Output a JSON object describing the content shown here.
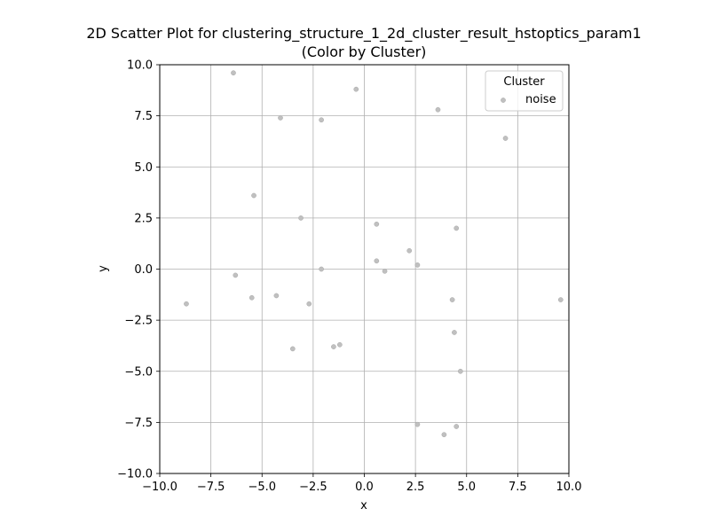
{
  "chart_data": {
    "type": "scatter",
    "title": "2D Scatter Plot for clustering_structure_1_2d_cluster_result_hstoptics_param1",
    "subtitle": "(Color by Cluster)",
    "xlabel": "x",
    "ylabel": "y",
    "xlim": [
      -10,
      10
    ],
    "ylim": [
      -10,
      10
    ],
    "xticks": [
      -10.0,
      -7.5,
      -5.0,
      -2.5,
      0.0,
      2.5,
      5.0,
      7.5,
      10.0
    ],
    "yticks": [
      -10.0,
      -7.5,
      -5.0,
      -2.5,
      0.0,
      2.5,
      5.0,
      7.5,
      10.0
    ],
    "xtick_labels": [
      "−10.0",
      "−7.5",
      "−5.0",
      "−2.5",
      "0.0",
      "2.5",
      "5.0",
      "7.5",
      "10.0"
    ],
    "ytick_labels": [
      "−10.0",
      "−7.5",
      "−5.0",
      "−2.5",
      "0.0",
      "2.5",
      "5.0",
      "7.5",
      "10.0"
    ],
    "grid": true,
    "legend": {
      "title": "Cluster",
      "placement": "top-right",
      "entries": [
        "noise"
      ]
    },
    "series": [
      {
        "name": "noise",
        "color": "#c0c0c0",
        "points": [
          [
            -6.4,
            9.6
          ],
          [
            -0.4,
            8.8
          ],
          [
            3.6,
            7.8
          ],
          [
            -4.1,
            7.4
          ],
          [
            -2.1,
            7.3
          ],
          [
            6.9,
            6.4
          ],
          [
            -5.4,
            3.6
          ],
          [
            -3.1,
            2.5
          ],
          [
            0.6,
            2.2
          ],
          [
            4.5,
            2.0
          ],
          [
            2.2,
            0.9
          ],
          [
            0.6,
            0.4
          ],
          [
            2.6,
            0.2
          ],
          [
            -2.1,
            0.0
          ],
          [
            1.0,
            -0.1
          ],
          [
            -6.3,
            -0.3
          ],
          [
            -4.3,
            -1.3
          ],
          [
            -5.5,
            -1.4
          ],
          [
            4.3,
            -1.5
          ],
          [
            9.6,
            -1.5
          ],
          [
            -8.7,
            -1.7
          ],
          [
            -2.7,
            -1.7
          ],
          [
            4.4,
            -3.1
          ],
          [
            -1.2,
            -3.7
          ],
          [
            -1.5,
            -3.8
          ],
          [
            -3.5,
            -3.9
          ],
          [
            4.7,
            -5.0
          ],
          [
            2.6,
            -7.6
          ],
          [
            4.5,
            -7.7
          ],
          [
            3.9,
            -8.1
          ]
        ]
      }
    ]
  }
}
